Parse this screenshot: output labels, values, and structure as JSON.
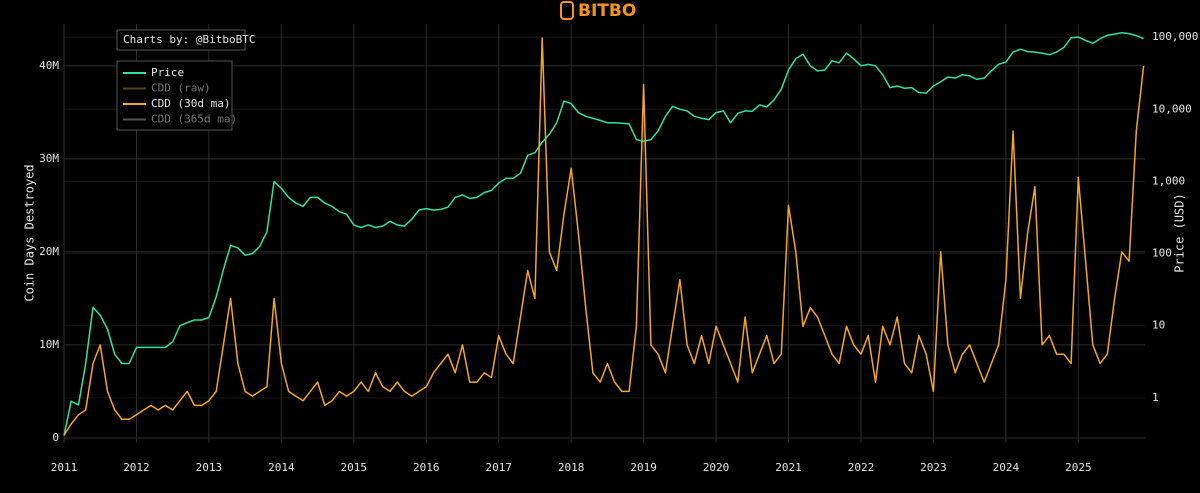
{
  "logo": "BITBO",
  "chart_data": {
    "type": "line",
    "annotation": "Charts by: @BitboBTC",
    "ylabel": "Coin Days Destroyed",
    "y2label": "Price (USD)",
    "grid": true,
    "legend_position": "upper left",
    "y2scale": "log",
    "xlim": [
      2011,
      2025.92
    ],
    "xticks": [
      2011,
      2012,
      2013,
      2014,
      2015,
      2016,
      2017,
      2018,
      2019,
      2020,
      2021,
      2022,
      2023,
      2024,
      2025
    ],
    "ylim": [
      -500000,
      44500000
    ],
    "yticks": [
      0,
      {
        "value": 10000000,
        "label": "10M"
      },
      {
        "value": 20000000,
        "label": "20M"
      },
      {
        "value": 30000000,
        "label": "30M"
      },
      {
        "value": 40000000,
        "label": "40M"
      }
    ],
    "y2lim": [
      0.24,
      152000
    ],
    "y2ticks": [
      1,
      10,
      100,
      {
        "value": 1000,
        "label": "1,000"
      },
      {
        "value": 10000,
        "label": "10,000"
      },
      {
        "value": 100000,
        "label": "100,000"
      }
    ],
    "x": [
      2011,
      2011.1,
      2011.2,
      2011.3,
      2011.4,
      2011.5,
      2011.6,
      2011.7,
      2011.8,
      2011.9,
      2012,
      2012.1,
      2012.2,
      2012.3,
      2012.4,
      2012.5,
      2012.6,
      2012.7,
      2012.8,
      2012.9,
      2013,
      2013.1,
      2013.2,
      2013.3,
      2013.4,
      2013.5,
      2013.6,
      2013.7,
      2013.8,
      2013.9,
      2014,
      2014.1,
      2014.2,
      2014.3,
      2014.4,
      2014.5,
      2014.6,
      2014.7,
      2014.8,
      2014.9,
      2015,
      2015.1,
      2015.2,
      2015.3,
      2015.4,
      2015.5,
      2015.6,
      2015.7,
      2015.8,
      2015.9,
      2016,
      2016.1,
      2016.2,
      2016.3,
      2016.4,
      2016.5,
      2016.6,
      2016.7,
      2016.8,
      2016.9,
      2017,
      2017.1,
      2017.2,
      2017.3,
      2017.4,
      2017.5,
      2017.6,
      2017.7,
      2017.8,
      2017.9,
      2018,
      2018.1,
      2018.2,
      2018.3,
      2018.4,
      2018.5,
      2018.6,
      2018.7,
      2018.8,
      2018.9,
      2019,
      2019.1,
      2019.2,
      2019.3,
      2019.4,
      2019.5,
      2019.6,
      2019.7,
      2019.8,
      2019.9,
      2020,
      2020.1,
      2020.2,
      2020.3,
      2020.4,
      2020.5,
      2020.6,
      2020.7,
      2020.8,
      2020.9,
      2021,
      2021.1,
      2021.2,
      2021.3,
      2021.4,
      2021.5,
      2021.6,
      2021.7,
      2021.8,
      2021.9,
      2022,
      2022.1,
      2022.2,
      2022.3,
      2022.4,
      2022.5,
      2022.6,
      2022.7,
      2022.8,
      2022.9,
      2023,
      2023.1,
      2023.2,
      2023.3,
      2023.4,
      2023.5,
      2023.6,
      2023.7,
      2023.8,
      2023.9,
      2024,
      2024.1,
      2024.2,
      2024.3,
      2024.4,
      2024.5,
      2024.6,
      2024.7,
      2024.8,
      2024.9,
      2025,
      2025.1,
      2025.2,
      2025.3,
      2025.4,
      2025.5,
      2025.6,
      2025.7,
      2025.8,
      2025.9
    ],
    "series": [
      {
        "name": "Price",
        "color": "#2fe39a",
        "axis": "y2",
        "visible": true,
        "values": [
          0.3,
          0.9,
          0.8,
          3,
          18,
          14,
          9,
          4,
          3,
          3,
          5,
          5,
          5,
          5,
          5,
          6,
          10,
          11,
          12,
          12,
          13,
          25,
          60,
          130,
          120,
          95,
          100,
          125,
          200,
          1000,
          800,
          600,
          500,
          450,
          600,
          600,
          500,
          450,
          380,
          350,
          250,
          230,
          250,
          230,
          240,
          280,
          250,
          240,
          300,
          400,
          420,
          400,
          410,
          440,
          600,
          650,
          580,
          600,
          700,
          750,
          950,
          1100,
          1100,
          1300,
          2300,
          2500,
          3500,
          4500,
          6500,
          13000,
          12000,
          9000,
          8000,
          7500,
          7000,
          6500,
          6500,
          6400,
          6300,
          3800,
          3600,
          3800,
          5000,
          8000,
          11000,
          10000,
          9500,
          8000,
          7500,
          7200,
          9000,
          9500,
          6500,
          8800,
          9500,
          9400,
          11500,
          10800,
          13500,
          19000,
          35000,
          50000,
          58000,
          40000,
          34000,
          35000,
          47000,
          44000,
          60000,
          50000,
          40000,
          42000,
          40000,
          30000,
          20000,
          21000,
          19500,
          20000,
          17000,
          16800,
          21000,
          24000,
          28000,
          27000,
          30000,
          29000,
          26000,
          27000,
          34000,
          42000,
          45000,
          62000,
          68000,
          63000,
          62000,
          60000,
          57000,
          62000,
          72000,
          98000,
          100000,
          90000,
          82000,
          95000,
          106000,
          110000,
          115000,
          112000,
          105000,
          95000
        ]
      },
      {
        "name": "CDD (raw)",
        "color": "#9a6a22",
        "visible": false
      },
      {
        "name": "CDD (30d ma)",
        "color": "#f5a623",
        "visible": true,
        "values": [
          300000,
          1500000,
          2500000,
          3000000,
          8000000,
          10000000,
          5000000,
          3000000,
          2000000,
          2000000,
          2500000,
          3000000,
          3500000,
          3000000,
          3500000,
          3000000,
          4000000,
          5000000,
          3500000,
          3500000,
          4000000,
          5000000,
          10000000,
          15000000,
          8000000,
          5000000,
          4500000,
          5000000,
          5500000,
          15000000,
          8000000,
          5000000,
          4500000,
          4000000,
          5000000,
          6000000,
          3500000,
          4000000,
          5000000,
          4500000,
          5000000,
          6000000,
          5000000,
          7000000,
          5500000,
          5000000,
          6000000,
          5000000,
          4500000,
          5000000,
          5500000,
          7000000,
          8000000,
          9000000,
          7000000,
          10000000,
          6000000,
          6000000,
          7000000,
          6500000,
          11000000,
          9000000,
          8000000,
          13000000,
          18000000,
          15000000,
          43000000,
          20000000,
          18000000,
          24000000,
          29000000,
          22000000,
          14000000,
          7000000,
          6000000,
          8000000,
          6000000,
          5000000,
          5000000,
          12000000,
          38000000,
          10000000,
          9000000,
          7000000,
          12000000,
          17000000,
          10000000,
          8000000,
          11000000,
          8000000,
          12000000,
          10000000,
          8000000,
          6000000,
          13000000,
          7000000,
          9000000,
          11000000,
          8000000,
          9000000,
          25000000,
          20000000,
          12000000,
          14000000,
          13000000,
          11000000,
          9000000,
          8000000,
          12000000,
          10000000,
          9000000,
          11000000,
          6000000,
          12000000,
          10000000,
          13000000,
          8000000,
          7000000,
          11000000,
          9000000,
          5000000,
          20000000,
          10000000,
          7000000,
          9000000,
          10000000,
          8000000,
          6000000,
          8000000,
          10000000,
          17000000,
          33000000,
          15000000,
          22000000,
          27000000,
          10000000,
          11000000,
          9000000,
          9000000,
          8000000,
          28000000,
          19000000,
          10000000,
          8000000,
          9000000,
          15000000,
          20000000,
          19000000,
          33000000,
          40000000
        ]
      },
      {
        "name": "CDD (365d ma)",
        "color": "#8a8a8a",
        "visible": false
      }
    ]
  }
}
